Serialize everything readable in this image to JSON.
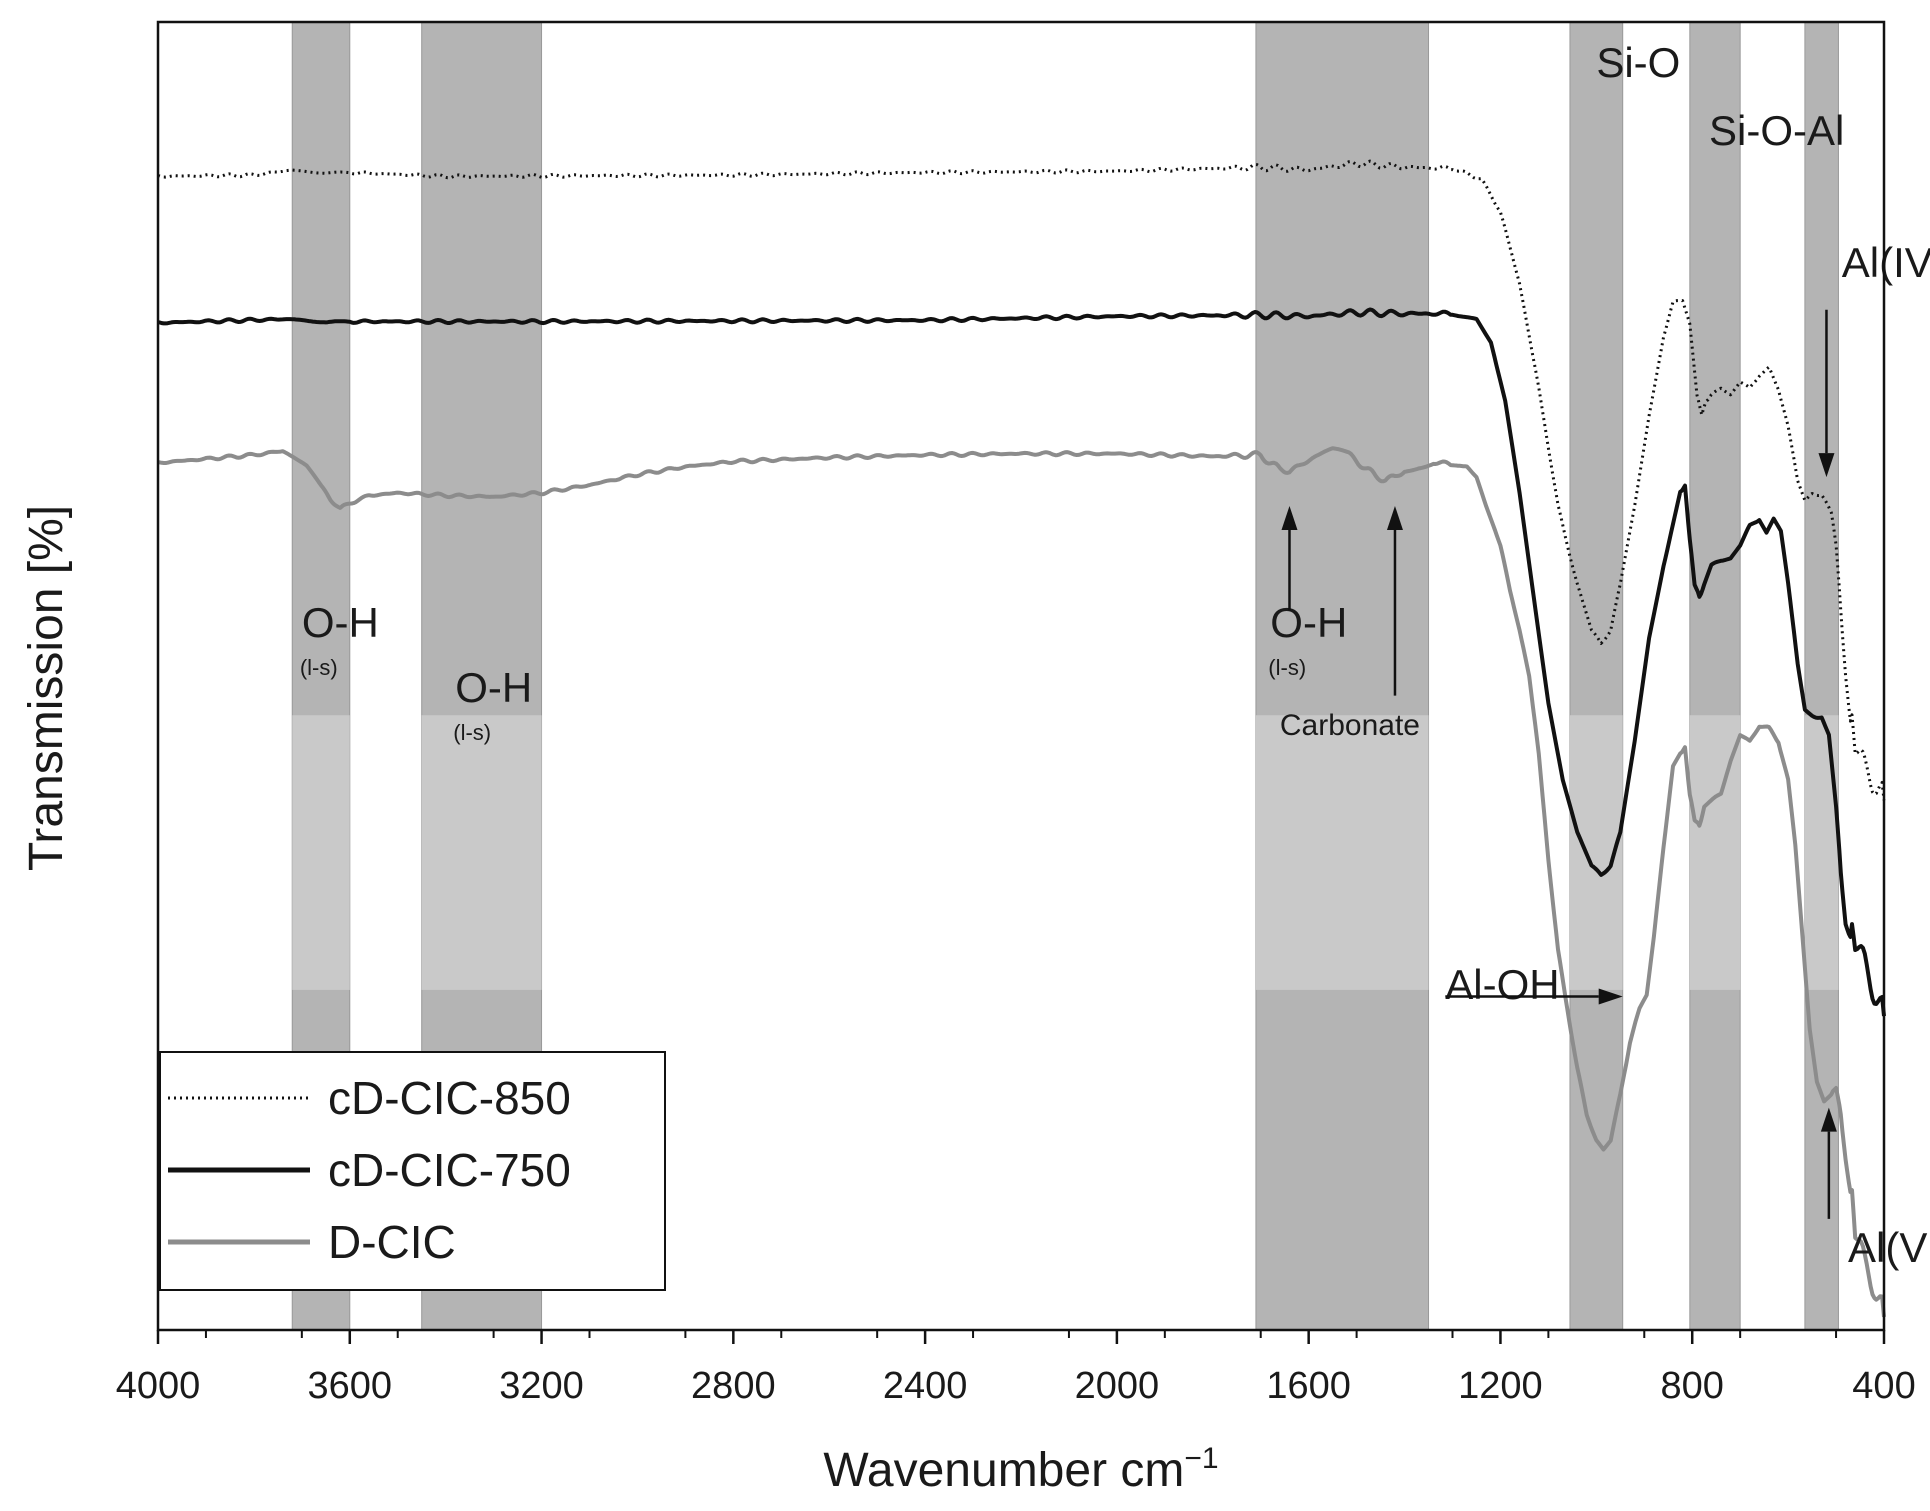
{
  "chart_data": {
    "type": "line",
    "title": "",
    "xlabel": "Wavenumber cm",
    "xlabel_sup": "−1",
    "ylabel": "Transmission [%]",
    "xlim": [
      4000,
      400
    ],
    "ylim": [
      0,
      100
    ],
    "x_ticks": [
      4000,
      3600,
      3200,
      2800,
      2400,
      2000,
      1600,
      1200,
      800,
      400
    ],
    "x_tick_labels": [
      "4000",
      "3600",
      "3200",
      "2800",
      "2400",
      "2000",
      "1600",
      "1200",
      "800",
      "400"
    ],
    "grid": false,
    "legend_position": "bottom-left",
    "colors": {
      "black": "#111111",
      "gray": "#8c8c8c",
      "band": "#b4b4b4",
      "band_light": "#c9c9c9"
    },
    "bands": [
      {
        "from": 3720,
        "to": 3600
      },
      {
        "from": 3450,
        "to": 3200
      },
      {
        "from": 1710,
        "to": 1350
      },
      {
        "from": 1055,
        "to": 945
      },
      {
        "from": 805,
        "to": 700
      },
      {
        "from": 565,
        "to": 495
      }
    ],
    "series": [
      {
        "name": "cD-CIC-850",
        "style": "dotted",
        "color": "#111111",
        "points": [
          [
            4000,
            88.2
          ],
          [
            3800,
            88.3
          ],
          [
            3720,
            88.7
          ],
          [
            3650,
            88.4
          ],
          [
            3600,
            88.5
          ],
          [
            3400,
            88.2
          ],
          [
            2800,
            88.3
          ],
          [
            2400,
            88.5
          ],
          [
            2000,
            88.6
          ],
          [
            1700,
            88.9
          ],
          [
            1600,
            88.7
          ],
          [
            1500,
            89.2
          ],
          [
            1400,
            88.9
          ],
          [
            1300,
            88.8
          ],
          [
            1240,
            88.0
          ],
          [
            1200,
            85.5
          ],
          [
            1160,
            80.0
          ],
          [
            1120,
            72.0
          ],
          [
            1080,
            63.0
          ],
          [
            1040,
            57.0
          ],
          [
            1010,
            53.5
          ],
          [
            990,
            52.5
          ],
          [
            970,
            53.5
          ],
          [
            950,
            57.0
          ],
          [
            920,
            63.0
          ],
          [
            890,
            70.0
          ],
          [
            860,
            76.0
          ],
          [
            840,
            78.5
          ],
          [
            820,
            78.8
          ],
          [
            805,
            77.0
          ],
          [
            790,
            71.5
          ],
          [
            780,
            70.0
          ],
          [
            770,
            71.0
          ],
          [
            760,
            71.5
          ],
          [
            740,
            72.0
          ],
          [
            720,
            71.5
          ],
          [
            700,
            72.5
          ],
          [
            680,
            72.0
          ],
          [
            660,
            73.0
          ],
          [
            640,
            73.5
          ],
          [
            620,
            72.0
          ],
          [
            600,
            69.0
          ],
          [
            580,
            65.0
          ],
          [
            565,
            63.5
          ],
          [
            550,
            64.0
          ],
          [
            530,
            63.8
          ],
          [
            510,
            62.5
          ],
          [
            500,
            60.0
          ],
          [
            490,
            55.0
          ],
          [
            480,
            50.0
          ],
          [
            470,
            46.5
          ],
          [
            460,
            44.5
          ],
          [
            440,
            43.0
          ],
          [
            420,
            42.0
          ],
          [
            400,
            40.5
          ]
        ]
      },
      {
        "name": "cD-CIC-750",
        "style": "solid",
        "color": "#111111",
        "points": [
          [
            4000,
            77.0
          ],
          [
            3720,
            77.3
          ],
          [
            3650,
            77.0
          ],
          [
            3600,
            77.1
          ],
          [
            3200,
            77.1
          ],
          [
            2400,
            77.2
          ],
          [
            2000,
            77.5
          ],
          [
            1700,
            77.6
          ],
          [
            1600,
            77.5
          ],
          [
            1500,
            77.8
          ],
          [
            1400,
            77.7
          ],
          [
            1300,
            77.7
          ],
          [
            1250,
            77.3
          ],
          [
            1220,
            75.5
          ],
          [
            1190,
            71.0
          ],
          [
            1160,
            64.0
          ],
          [
            1130,
            56.0
          ],
          [
            1100,
            48.0
          ],
          [
            1070,
            42.0
          ],
          [
            1040,
            38.0
          ],
          [
            1010,
            35.5
          ],
          [
            990,
            34.8
          ],
          [
            970,
            35.5
          ],
          [
            950,
            38.0
          ],
          [
            920,
            45.0
          ],
          [
            890,
            53.0
          ],
          [
            860,
            58.5
          ],
          [
            840,
            61.5
          ],
          [
            825,
            64.0
          ],
          [
            815,
            64.5
          ],
          [
            805,
            60.5
          ],
          [
            795,
            57.0
          ],
          [
            785,
            56.0
          ],
          [
            775,
            57.0
          ],
          [
            760,
            58.5
          ],
          [
            740,
            58.8
          ],
          [
            720,
            59.0
          ],
          [
            700,
            60.0
          ],
          [
            680,
            61.5
          ],
          [
            660,
            62.0
          ],
          [
            645,
            61.0
          ],
          [
            630,
            62.0
          ],
          [
            615,
            61.0
          ],
          [
            600,
            57.0
          ],
          [
            580,
            51.0
          ],
          [
            565,
            47.5
          ],
          [
            550,
            47.0
          ],
          [
            530,
            46.8
          ],
          [
            515,
            45.5
          ],
          [
            500,
            40.0
          ],
          [
            490,
            35.0
          ],
          [
            480,
            31.0
          ],
          [
            470,
            30.0
          ],
          [
            460,
            29.5
          ],
          [
            440,
            28.0
          ],
          [
            420,
            26.0
          ],
          [
            400,
            24.0
          ]
        ]
      },
      {
        "name": "D-CIC",
        "style": "solid",
        "color": "#8c8c8c",
        "points": [
          [
            4000,
            66.3
          ],
          [
            3900,
            66.6
          ],
          [
            3800,
            66.9
          ],
          [
            3740,
            67.2
          ],
          [
            3720,
            66.8
          ],
          [
            3690,
            66.0
          ],
          [
            3660,
            64.5
          ],
          [
            3640,
            63.5
          ],
          [
            3620,
            62.8
          ],
          [
            3600,
            63.2
          ],
          [
            3560,
            63.8
          ],
          [
            3500,
            64.0
          ],
          [
            3400,
            63.8
          ],
          [
            3300,
            63.7
          ],
          [
            3200,
            64.0
          ],
          [
            3100,
            64.6
          ],
          [
            3000,
            65.4
          ],
          [
            2900,
            66.0
          ],
          [
            2800,
            66.4
          ],
          [
            2600,
            66.7
          ],
          [
            2400,
            66.9
          ],
          [
            2200,
            67.0
          ],
          [
            2000,
            67.0
          ],
          [
            1800,
            66.8
          ],
          [
            1700,
            66.9
          ],
          [
            1680,
            66.3
          ],
          [
            1660,
            65.8
          ],
          [
            1640,
            65.7
          ],
          [
            1620,
            66.0
          ],
          [
            1600,
            66.5
          ],
          [
            1580,
            66.9
          ],
          [
            1550,
            67.2
          ],
          [
            1520,
            67.0
          ],
          [
            1500,
            66.5
          ],
          [
            1480,
            65.8
          ],
          [
            1460,
            65.3
          ],
          [
            1440,
            65.0
          ],
          [
            1420,
            65.2
          ],
          [
            1400,
            65.7
          ],
          [
            1370,
            66.1
          ],
          [
            1340,
            66.3
          ],
          [
            1300,
            66.2
          ],
          [
            1270,
            66.0
          ],
          [
            1250,
            65.2
          ],
          [
            1230,
            63.0
          ],
          [
            1200,
            60.0
          ],
          [
            1180,
            56.5
          ],
          [
            1160,
            53.5
          ],
          [
            1140,
            50.0
          ],
          [
            1120,
            44.0
          ],
          [
            1100,
            36.0
          ],
          [
            1080,
            29.0
          ],
          [
            1060,
            24.5
          ],
          [
            1040,
            20.0
          ],
          [
            1020,
            16.5
          ],
          [
            1000,
            14.5
          ],
          [
            985,
            13.8
          ],
          [
            970,
            14.5
          ],
          [
            950,
            18.0
          ],
          [
            930,
            22.0
          ],
          [
            910,
            24.5
          ],
          [
            895,
            25.5
          ],
          [
            880,
            30.0
          ],
          [
            860,
            37.0
          ],
          [
            840,
            43.0
          ],
          [
            825,
            44.0
          ],
          [
            815,
            44.5
          ],
          [
            805,
            41.0
          ],
          [
            795,
            39.0
          ],
          [
            785,
            38.5
          ],
          [
            775,
            40.0
          ],
          [
            760,
            40.5
          ],
          [
            740,
            41.0
          ],
          [
            720,
            43.5
          ],
          [
            700,
            45.5
          ],
          [
            680,
            45.0
          ],
          [
            660,
            46.2
          ],
          [
            640,
            46.0
          ],
          [
            620,
            45.0
          ],
          [
            600,
            42.0
          ],
          [
            585,
            37.0
          ],
          [
            570,
            30.0
          ],
          [
            555,
            23.0
          ],
          [
            540,
            19.0
          ],
          [
            525,
            17.5
          ],
          [
            510,
            18.0
          ],
          [
            500,
            18.5
          ],
          [
            490,
            16.5
          ],
          [
            480,
            13.0
          ],
          [
            470,
            10.5
          ],
          [
            460,
            7.5
          ],
          [
            440,
            5.0
          ],
          [
            420,
            3.5
          ],
          [
            400,
            1.0
          ]
        ]
      }
    ],
    "annotations": [
      {
        "main": "O-H",
        "sub": "(l-s)",
        "x": 3700,
        "y": 53
      },
      {
        "main": "O-H",
        "sub": "(l-s)",
        "x": 3380,
        "y": 48
      },
      {
        "main": "O-H",
        "sub": "(l-s)",
        "x": 1680,
        "y": 53
      },
      {
        "main": "Carbonate",
        "x": 1660,
        "y": 45.5
      },
      {
        "main": "Si-O",
        "x": 1000,
        "y": 95.8
      },
      {
        "main": "Si-O-Al",
        "x": 765,
        "y": 90.6
      },
      {
        "main": "Al(IV)",
        "x": 488,
        "y": 80.5
      },
      {
        "main": "Al-OH",
        "x": 1315,
        "y": 25.3
      },
      {
        "main": "Al(VI)",
        "x": 475,
        "y": 5.2
      }
    ],
    "arrows": [
      {
        "from": [
          1640,
          55
        ],
        "to": [
          1640,
          63
        ]
      },
      {
        "from": [
          1420,
          48.5
        ],
        "to": [
          1420,
          63
        ]
      },
      {
        "from": [
          1315,
          25.5
        ],
        "to": [
          945,
          25.5
        ]
      },
      {
        "from": [
          520,
          78
        ],
        "to": [
          520,
          65.2
        ]
      },
      {
        "from": [
          515,
          8.5
        ],
        "to": [
          515,
          17
        ]
      }
    ]
  }
}
